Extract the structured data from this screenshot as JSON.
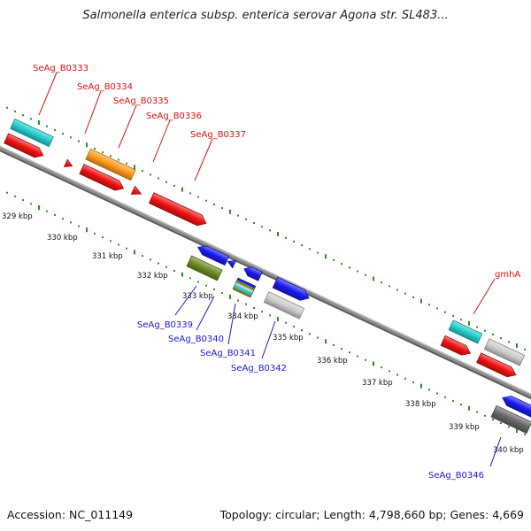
{
  "title": "Salmonella enterica subsp. enterica serovar Agona str. SL483...",
  "footer": {
    "accession": "Accession: NC_011149",
    "topology": "Topology: circular; Length: 4,798,660 bp; Genes: 4,669"
  },
  "colors": {
    "backbone": "#8c8c8c",
    "tick": "#2e8b22",
    "forward_label": "#dd1111",
    "reverse_label": "#1a1acc",
    "red": "#ee1111",
    "cyan": "#22cccc",
    "orange": "#ff9a1a",
    "blue": "#1a1aee",
    "olive": "#6b8a22",
    "light_gray": "#cccccc",
    "dark_gray": "#666666"
  },
  "kbp_labels": [
    "329 kbp",
    "330 kbp",
    "331 kbp",
    "332 kbp",
    "333 kbp",
    "334 kbp",
    "335 kbp",
    "336 kbp",
    "337 kbp",
    "338 kbp",
    "339 kbp",
    "340 kbp"
  ],
  "forward_genes": [
    "SeAg_B0333",
    "SeAg_B0334",
    "SeAg_B0335",
    "SeAg_B0336",
    "SeAg_B0337",
    "gmhA"
  ],
  "reverse_genes": [
    "SeAg_B0339",
    "SeAg_B0340",
    "SeAg_B0341",
    "SeAg_B0342",
    "SeAg_B0346"
  ]
}
